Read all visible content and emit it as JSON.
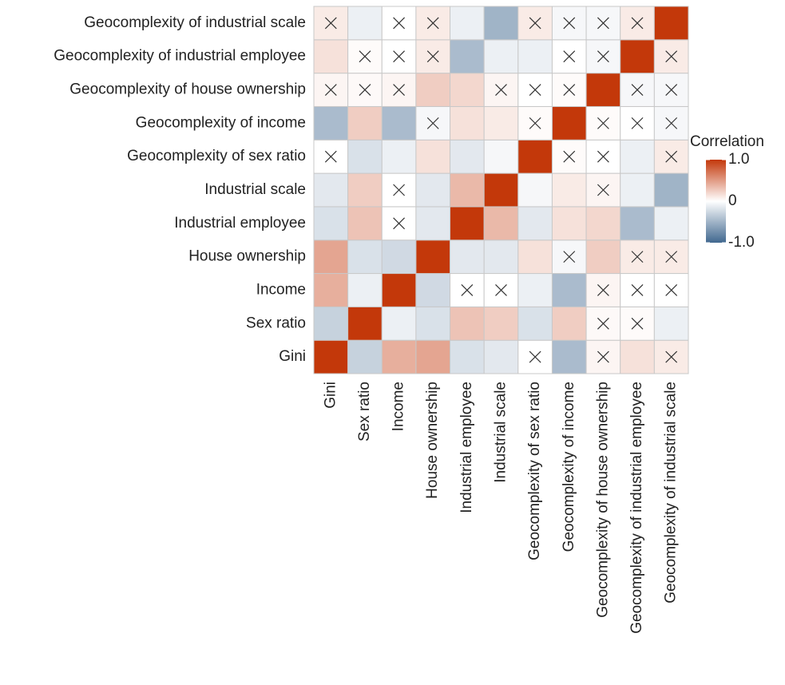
{
  "chart_data": {
    "type": "heatmap",
    "categories": [
      "Gini",
      "Sex ratio",
      "Income",
      "House ownership",
      "Industrial employee",
      "Industrial scale",
      "Geocomplexity of sex ratio",
      "Geocomplexity of income",
      "Geocomplexity of house ownership",
      "Geocomplexity of industrial employee",
      "Geocomplexity of industrial scale"
    ],
    "values": [
      [
        1,
        -0.3,
        0.4,
        0.45,
        -0.2,
        -0.15,
        0.0,
        -0.45,
        0.05,
        0.15,
        0.1
      ],
      [
        -0.3,
        1,
        -0.1,
        -0.2,
        0.3,
        0.25,
        -0.2,
        0.25,
        0.03,
        0.02,
        -0.1
      ],
      [
        0.4,
        -0.1,
        1,
        -0.25,
        0.0,
        0.0,
        -0.1,
        -0.45,
        0.05,
        0.0,
        0.0
      ],
      [
        0.45,
        -0.2,
        -0.25,
        1,
        -0.15,
        -0.15,
        0.15,
        -0.05,
        0.25,
        0.1,
        0.1
      ],
      [
        -0.2,
        0.3,
        0.0,
        -0.15,
        1,
        0.35,
        -0.15,
        0.15,
        0.2,
        -0.45,
        -0.1
      ],
      [
        -0.15,
        0.25,
        0.0,
        -0.15,
        0.35,
        1,
        -0.05,
        0.1,
        0.05,
        -0.1,
        -0.5
      ],
      [
        0.0,
        -0.2,
        -0.1,
        0.15,
        -0.15,
        -0.05,
        1,
        0.02,
        0.0,
        -0.1,
        0.1
      ],
      [
        -0.45,
        0.25,
        -0.45,
        -0.05,
        0.15,
        0.1,
        0.02,
        1,
        0.02,
        0.0,
        -0.05
      ],
      [
        0.05,
        0.03,
        0.05,
        0.25,
        0.2,
        0.05,
        0.0,
        0.02,
        1,
        -0.05,
        -0.05
      ],
      [
        0.15,
        0.02,
        0.0,
        0.1,
        -0.45,
        -0.1,
        -0.1,
        0.0,
        -0.05,
        1,
        0.1
      ],
      [
        0.1,
        -0.1,
        0.0,
        0.1,
        -0.1,
        -0.5,
        0.1,
        -0.05,
        -0.05,
        0.1,
        1
      ]
    ],
    "crossed": [
      [
        false,
        false,
        false,
        false,
        false,
        false,
        true,
        false,
        true,
        false,
        true
      ],
      [
        false,
        false,
        false,
        false,
        false,
        false,
        false,
        false,
        true,
        true,
        false
      ],
      [
        false,
        false,
        false,
        false,
        true,
        true,
        false,
        false,
        true,
        true,
        true
      ],
      [
        false,
        false,
        false,
        false,
        false,
        false,
        false,
        true,
        false,
        true,
        true
      ],
      [
        false,
        false,
        true,
        false,
        false,
        false,
        false,
        false,
        false,
        false,
        false
      ],
      [
        false,
        false,
        true,
        false,
        false,
        false,
        false,
        false,
        true,
        false,
        false
      ],
      [
        true,
        false,
        false,
        false,
        false,
        false,
        false,
        true,
        true,
        false,
        true
      ],
      [
        false,
        false,
        false,
        true,
        false,
        false,
        true,
        false,
        true,
        true,
        true
      ],
      [
        true,
        true,
        true,
        false,
        false,
        true,
        true,
        true,
        false,
        true,
        true
      ],
      [
        false,
        true,
        true,
        true,
        false,
        false,
        false,
        true,
        true,
        false,
        true
      ],
      [
        true,
        false,
        true,
        true,
        false,
        false,
        true,
        true,
        true,
        true,
        false
      ]
    ],
    "colorscale": {
      "low": "#41688f",
      "mid": "#ffffff",
      "high": "#c3380a"
    },
    "legend": {
      "title": "Correlation",
      "lim": [
        -1,
        1
      ],
      "ticks": [
        {
          "value": 1,
          "label": "1.0"
        },
        0,
        {
          "value": -1,
          "label": "-1.0"
        }
      ]
    }
  }
}
